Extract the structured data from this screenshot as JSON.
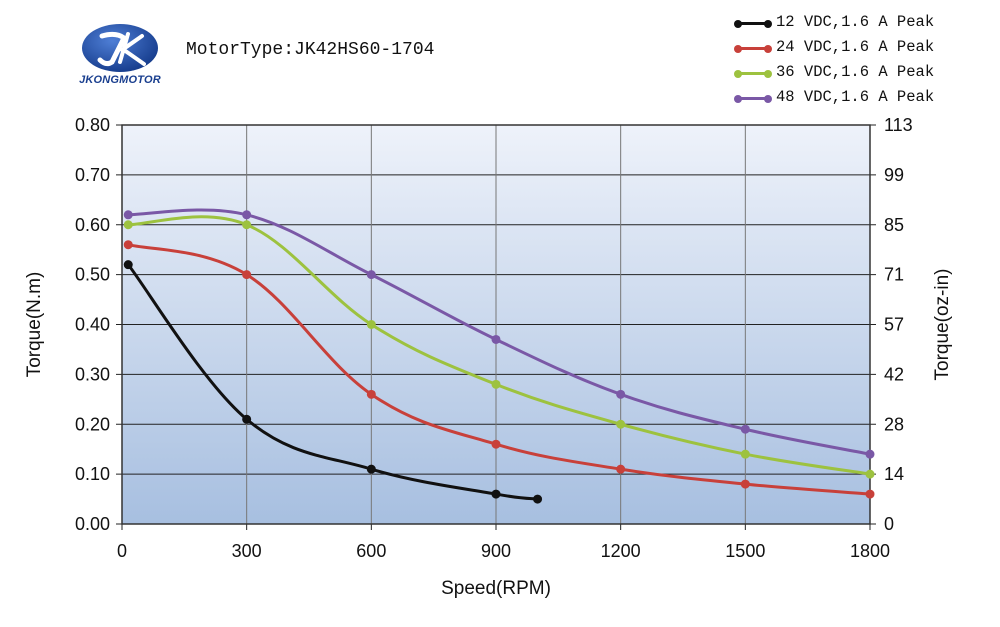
{
  "header": {
    "logo_text": "JKONGMOTOR",
    "motor_type": "MotorType:JK42HS60-1704"
  },
  "chart_data": {
    "type": "line",
    "title": "MotorType:JK42HS60-1704",
    "xlabel": "Speed(RPM)",
    "ylabel": "Torque(N.m)",
    "y2label": "Torque(oz-in)",
    "xlim": [
      0,
      1800
    ],
    "ylim": [
      0,
      0.8
    ],
    "x_ticks": [
      "0",
      "300",
      "600",
      "900",
      "1200",
      "1500",
      "1800"
    ],
    "y_ticks": [
      "0.00",
      "0.10",
      "0.20",
      "0.30",
      "0.40",
      "0.50",
      "0.60",
      "0.70",
      "0.80"
    ],
    "y2_ticks": [
      "0",
      "14",
      "28",
      "42",
      "57",
      "71",
      "85",
      "99",
      "113"
    ],
    "grid": true,
    "legend_position": "top-right",
    "background_gradient": [
      "#eef2fa",
      "#a7bfe0"
    ],
    "series": [
      {
        "name": "12 VDC,1.6 A Peak",
        "color": "#111111",
        "x": [
          15,
          300,
          600,
          900,
          1000
        ],
        "y": [
          0.52,
          0.21,
          0.11,
          0.06,
          0.05
        ]
      },
      {
        "name": "24 VDC,1.6 A Peak",
        "color": "#c8403a",
        "x": [
          15,
          300,
          600,
          900,
          1200,
          1500,
          1800
        ],
        "y": [
          0.56,
          0.5,
          0.26,
          0.16,
          0.11,
          0.08,
          0.06
        ]
      },
      {
        "name": "36 VDC,1.6 A Peak",
        "color": "#9dc23f",
        "x": [
          15,
          300,
          600,
          900,
          1200,
          1500,
          1800
        ],
        "y": [
          0.6,
          0.6,
          0.4,
          0.28,
          0.2,
          0.14,
          0.1
        ]
      },
      {
        "name": "48 VDC,1.6 A Peak",
        "color": "#7a58a6",
        "x": [
          15,
          300,
          600,
          900,
          1200,
          1500,
          1800
        ],
        "y": [
          0.62,
          0.62,
          0.5,
          0.37,
          0.26,
          0.19,
          0.14
        ]
      }
    ]
  }
}
